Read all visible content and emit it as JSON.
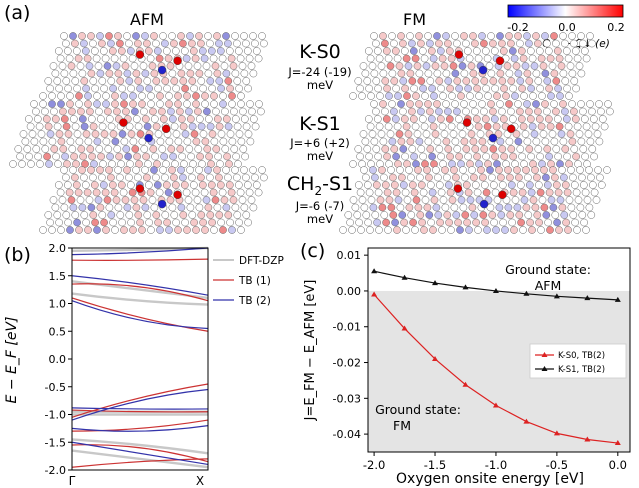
{
  "panels": {
    "a": "(a)",
    "b": "(b)",
    "c": "(c)"
  },
  "panel_a": {
    "columns": [
      "AFM",
      "FM"
    ],
    "structures": [
      {
        "name": "K-S0",
        "name_pre": "K-S0",
        "name_sub": "",
        "name_post": "",
        "j_text": "J=-24 (-19)",
        "unit": "meV"
      },
      {
        "name": "K-S1",
        "name_pre": "K-S1",
        "name_sub": "",
        "name_post": "",
        "j_text": "J=+6 (+2)",
        "unit": "meV"
      },
      {
        "name": "CH2-S1",
        "name_pre": "CH",
        "name_sub": "2",
        "name_post": "-S1",
        "j_text": "J=-6 (-7)",
        "unit": "meV"
      }
    ],
    "colorbar": {
      "ticks": [
        "-0.2",
        "0.0",
        "0.2"
      ],
      "label": "Q↑ − Q↓ (e)",
      "colors": [
        "#0000ff",
        "#ffffff",
        "#ff0000"
      ]
    }
  },
  "chart_data": [
    {
      "type": "line",
      "panel": "b",
      "ylabel": "E − E_F [eV]",
      "ylim": [
        -2.0,
        2.0
      ],
      "yticks": [
        "-2.0",
        "-1.5",
        "-1.0",
        "-0.5",
        "0.0",
        "0.5",
        "1.0",
        "1.5",
        "2.0"
      ],
      "xticks": [
        "Γ",
        "X"
      ],
      "legend": [
        "DFT-DZP",
        "TB (1)",
        "TB (2)"
      ],
      "legend_colors": [
        "#c8c8c8",
        "#cc3333",
        "#3333aa"
      ],
      "series": [
        {
          "name": "DFT-DZP",
          "bands": [
            [
              1.95,
              1.97,
              2.0
            ],
            [
              1.4,
              1.25,
              1.1
            ],
            [
              1.18,
              1.05,
              0.98
            ],
            [
              -0.95,
              -0.95,
              -0.95
            ],
            [
              -1.0,
              -1.0,
              -1.0
            ],
            [
              -1.45,
              -1.55,
              -1.7
            ],
            [
              -1.65,
              -1.8,
              -1.95
            ]
          ]
        },
        {
          "name": "TB (1)",
          "bands": [
            [
              1.78,
              1.78,
              1.8
            ],
            [
              1.35,
              1.3,
              1.05
            ],
            [
              1.1,
              0.75,
              0.5
            ],
            [
              -1.05,
              -0.7,
              -0.45
            ],
            [
              -0.92,
              -0.95,
              -0.95
            ],
            [
              -1.3,
              -1.25,
              -1.1
            ],
            [
              -1.55,
              -1.6,
              -1.85
            ],
            [
              -1.95,
              -1.85,
              -1.8
            ]
          ]
        },
        {
          "name": "TB (2)",
          "bands": [
            [
              1.88,
              1.92,
              2.0
            ],
            [
              1.5,
              1.35,
              1.15
            ],
            [
              1.05,
              0.7,
              0.55
            ],
            [
              -1.1,
              -0.75,
              -0.55
            ],
            [
              -0.88,
              -0.9,
              -0.9
            ],
            [
              -1.25,
              -1.3,
              -1.2
            ],
            [
              -1.5,
              -1.7,
              -1.9
            ]
          ]
        }
      ]
    },
    {
      "type": "line",
      "panel": "c",
      "xlabel": "Oxygen onsite energy [eV]",
      "ylabel": "J=E_FM − E_AFM [eV]",
      "xlim": [
        -2.05,
        0.1
      ],
      "ylim": [
        -0.045,
        0.012
      ],
      "xticks": [
        -2.0,
        -1.5,
        -1.0,
        -0.5,
        0.0
      ],
      "xtick_labels": [
        "-2.0",
        "-1.5",
        "-1.0",
        "-0.5",
        "0.0"
      ],
      "yticks": [
        0.01,
        0.0,
        -0.01,
        -0.02,
        -0.03,
        -0.04
      ],
      "ytick_labels": [
        "0.01",
        "0.00",
        "-0.01",
        "-0.02",
        "-0.03",
        "-0.04"
      ],
      "x": [
        -2.0,
        -1.75,
        -1.5,
        -1.25,
        -1.0,
        -0.75,
        -0.5,
        -0.25,
        0.0
      ],
      "series": [
        {
          "name": "K-S0, TB(2)",
          "color": "#dd2222",
          "values": [
            -0.001,
            -0.0105,
            -0.019,
            -0.0262,
            -0.032,
            -0.0365,
            -0.0398,
            -0.0415,
            -0.0425
          ]
        },
        {
          "name": "K-S1, TB(2)",
          "color": "#111111",
          "values": [
            0.0055,
            0.0037,
            0.0022,
            0.001,
            0.0,
            -0.0008,
            -0.0015,
            -0.002,
            -0.0025
          ]
        }
      ],
      "annotations": [
        {
          "text_lines": [
            "Ground state:",
            "AFM"
          ]
        },
        {
          "text_lines": [
            "Ground state:",
            "FM"
          ]
        }
      ],
      "shaded_region": "below J=0 (FM ground state)"
    }
  ]
}
